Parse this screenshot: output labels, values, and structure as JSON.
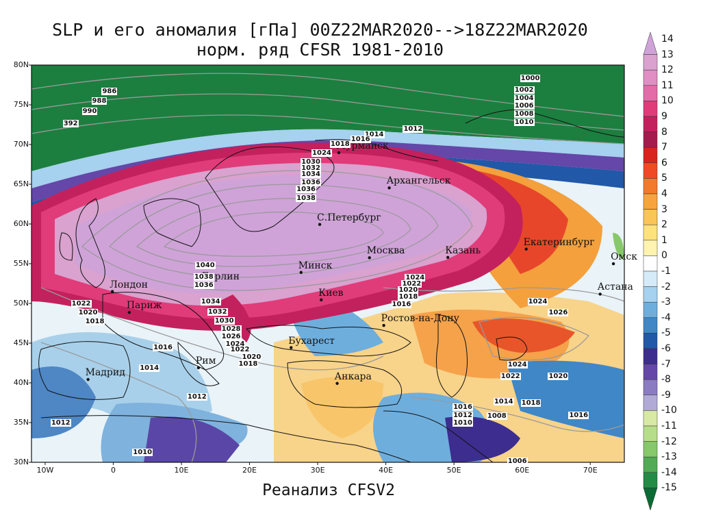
{
  "title_line1": "SLP и его аномалия [гПа] 00Z22MAR2020-->18Z22MAR2020",
  "title_line2": "норм. ряд CFSR 1981-2010",
  "footer": "Реанализ CFSV2",
  "lat_labels": [
    "80N",
    "75N",
    "70N",
    "65N",
    "60N",
    "55N",
    "50N",
    "45N",
    "40N",
    "35N",
    "30N"
  ],
  "lon_labels": [
    "10W",
    "0",
    "10E",
    "20E",
    "30E",
    "40E",
    "50E",
    "60E",
    "70E"
  ],
  "cities": [
    {
      "name": "Мурманск",
      "lon": 33.1,
      "lat": 68.97
    },
    {
      "name": "Архангельск",
      "lon": 40.5,
      "lat": 64.54
    },
    {
      "name": "С.Петербург",
      "lon": 30.3,
      "lat": 59.94
    },
    {
      "name": "Москва",
      "lon": 37.6,
      "lat": 55.75
    },
    {
      "name": "Казань",
      "lon": 49.1,
      "lat": 55.79
    },
    {
      "name": "Екатеринбург",
      "lon": 60.6,
      "lat": 56.84
    },
    {
      "name": "Минск",
      "lon": 27.56,
      "lat": 53.9
    },
    {
      "name": "Киев",
      "lon": 30.52,
      "lat": 50.45
    },
    {
      "name": "Берлин",
      "lon": 13.4,
      "lat": 52.52
    },
    {
      "name": "Лондон",
      "lon": -0.13,
      "lat": 51.5
    },
    {
      "name": "Париж",
      "lon": 2.35,
      "lat": 48.86
    },
    {
      "name": "Ростов-на-Дону",
      "lon": 39.7,
      "lat": 47.23
    },
    {
      "name": "Омск",
      "lon": 73.4,
      "lat": 54.99
    },
    {
      "name": "Астана",
      "lon": 71.45,
      "lat": 51.17
    },
    {
      "name": "Бухарест",
      "lon": 26.1,
      "lat": 44.43
    },
    {
      "name": "Рим",
      "lon": 12.5,
      "lat": 41.9
    },
    {
      "name": "Мадрид",
      "lon": -3.7,
      "lat": 40.42
    },
    {
      "name": "Анкара",
      "lon": 32.86,
      "lat": 39.93
    }
  ],
  "isobar_labels": [
    {
      "v": "986",
      "lon": -0.5,
      "lat": 76.6
    },
    {
      "v": "988",
      "lon": -2.0,
      "lat": 75.4
    },
    {
      "v": "990",
      "lon": -3.4,
      "lat": 74.1
    },
    {
      "v": "392",
      "lon": -6.2,
      "lat": 72.6
    },
    {
      "v": "1000",
      "lon": 60.9,
      "lat": 78.3
    },
    {
      "v": "1002",
      "lon": 60.0,
      "lat": 76.8
    },
    {
      "v": "1004",
      "lon": 60.0,
      "lat": 75.8
    },
    {
      "v": "1006",
      "lon": 60.0,
      "lat": 74.8
    },
    {
      "v": "1008",
      "lon": 60.0,
      "lat": 73.8
    },
    {
      "v": "1010",
      "lon": 60.0,
      "lat": 72.8
    },
    {
      "v": "1012",
      "lon": 43.7,
      "lat": 71.9
    },
    {
      "v": "1014",
      "lon": 38.0,
      "lat": 71.2
    },
    {
      "v": "1016",
      "lon": 36.0,
      "lat": 70.6
    },
    {
      "v": "1018",
      "lon": 33.0,
      "lat": 70.0
    },
    {
      "v": "1024",
      "lon": 30.3,
      "lat": 68.9
    },
    {
      "v": "1030",
      "lon": 28.7,
      "lat": 67.8
    },
    {
      "v": "1032",
      "lon": 28.7,
      "lat": 67.0
    },
    {
      "v": "1034",
      "lon": 28.7,
      "lat": 66.2
    },
    {
      "v": "1036",
      "lon": 28.7,
      "lat": 65.2
    },
    {
      "v": "1036",
      "lon": 28.0,
      "lat": 64.3
    },
    {
      "v": "1038",
      "lon": 28.0,
      "lat": 63.2
    },
    {
      "v": "1040",
      "lon": 13.2,
      "lat": 54.7
    },
    {
      "v": "1038",
      "lon": 13.0,
      "lat": 53.3
    },
    {
      "v": "1036",
      "lon": 13.0,
      "lat": 52.2
    },
    {
      "v": "1034",
      "lon": 14.0,
      "lat": 50.2
    },
    {
      "v": "1032",
      "lon": 15.0,
      "lat": 48.9
    },
    {
      "v": "1030",
      "lon": 16.0,
      "lat": 47.8
    },
    {
      "v": "1028",
      "lon": 17.0,
      "lat": 46.7
    },
    {
      "v": "1026",
      "lon": 17.0,
      "lat": 45.8
    },
    {
      "v": "1024",
      "lon": 17.6,
      "lat": 44.8
    },
    {
      "v": "1022",
      "lon": 18.3,
      "lat": 44.1
    },
    {
      "v": "1020",
      "lon": 20.0,
      "lat": 43.2
    },
    {
      "v": "1018",
      "lon": 19.5,
      "lat": 42.3
    },
    {
      "v": "1022",
      "lon": -5.0,
      "lat": 49.9
    },
    {
      "v": "1020",
      "lon": -4.0,
      "lat": 48.8
    },
    {
      "v": "1018",
      "lon": -3.0,
      "lat": 47.7
    },
    {
      "v": "1016",
      "lon": 7.0,
      "lat": 44.4
    },
    {
      "v": "1014",
      "lon": 5.0,
      "lat": 41.8
    },
    {
      "v": "1012",
      "lon": 12.0,
      "lat": 38.2
    },
    {
      "v": "1012",
      "lon": -8.0,
      "lat": 34.9
    },
    {
      "v": "1010",
      "lon": 4.0,
      "lat": 31.2
    },
    {
      "v": "1024",
      "lon": 44.0,
      "lat": 53.2
    },
    {
      "v": "1022",
      "lon": 43.5,
      "lat": 52.4
    },
    {
      "v": "1020",
      "lon": 43.0,
      "lat": 51.6
    },
    {
      "v": "1018",
      "lon": 43.0,
      "lat": 50.8
    },
    {
      "v": "1016",
      "lon": 42.0,
      "lat": 49.8
    },
    {
      "v": "1024",
      "lon": 62.0,
      "lat": 50.2
    },
    {
      "v": "1026",
      "lon": 65.0,
      "lat": 48.8
    },
    {
      "v": "1024",
      "lon": 59.0,
      "lat": 42.2
    },
    {
      "v": "1022",
      "lon": 58.0,
      "lat": 40.8
    },
    {
      "v": "1020",
      "lon": 65.0,
      "lat": 40.8
    },
    {
      "v": "1018",
      "lon": 61.0,
      "lat": 37.4
    },
    {
      "v": "1016",
      "lon": 68.0,
      "lat": 35.9
    },
    {
      "v": "1014",
      "lon": 57.0,
      "lat": 37.6
    },
    {
      "v": "1016",
      "lon": 51.0,
      "lat": 36.9
    },
    {
      "v": "1012",
      "lon": 51.0,
      "lat": 35.9
    },
    {
      "v": "1010",
      "lon": 51.0,
      "lat": 34.9
    },
    {
      "v": "1008",
      "lon": 56.0,
      "lat": 35.8
    },
    {
      "v": "1006",
      "lon": 59.0,
      "lat": 30.1
    }
  ],
  "colorbar_labels": [
    "14",
    "13",
    "12",
    "11",
    "10",
    "9",
    "8",
    "7",
    "6",
    "5",
    "4",
    "3",
    "2",
    "1",
    "0",
    "-1",
    "-2",
    "-3",
    "-4",
    "-5",
    "-6",
    "-7",
    "-8",
    "-9",
    "-10",
    "-11",
    "-12",
    "-13",
    "-14",
    "-15"
  ],
  "colorbar_colors": [
    "#cfa3d8",
    "#d9a2cf",
    "#e08ec4",
    "#e36ba8",
    "#e03c7a",
    "#c3215d",
    "#a51b4e",
    "#d9231f",
    "#ef4a25",
    "#f37a2b",
    "#f8a43d",
    "#fbc457",
    "#fde27c",
    "#fff3b0",
    "#ffffff",
    "#d5ecf8",
    "#a6d1ef",
    "#6eaedd",
    "#3f87c6",
    "#2158a8",
    "#3c2d8f",
    "#6447a8",
    "#8b7bc1",
    "#b2aad6",
    "#d7e9a5",
    "#b6de8a",
    "#86c86a",
    "#51ab55",
    "#238b45",
    "#0b6b34"
  ]
}
